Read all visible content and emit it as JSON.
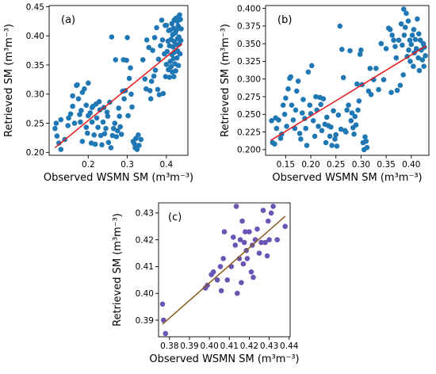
{
  "chart_data": [
    {
      "type": "scatter",
      "panel_label": "(a)",
      "xlabel": "Observed WSMN SM (m³m⁻³)",
      "ylabel": "Retrieved SM (m³m⁻³)",
      "xlim": [
        0.1,
        0.455
      ],
      "ylim": [
        0.195,
        0.452
      ],
      "xticks": [
        0.2,
        0.3,
        0.4
      ],
      "yticks": [
        0.2,
        0.25,
        0.3,
        0.35,
        0.4,
        0.45
      ],
      "xtick_labels": [
        "0.2",
        "0.3",
        "0.4"
      ],
      "ytick_labels": [
        "0.20",
        "0.25",
        "0.30",
        "0.35",
        "0.40",
        "0.45"
      ],
      "point_color": "#1f77b4",
      "fit_color": "#e31a1c",
      "fit_line": {
        "x": [
          0.115,
          0.44
        ],
        "y": [
          0.208,
          0.386
        ]
      },
      "points": [
        [
          0.115,
          0.241
        ],
        [
          0.118,
          0.25
        ],
        [
          0.12,
          0.228
        ],
        [
          0.125,
          0.216
        ],
        [
          0.13,
          0.205
        ],
        [
          0.13,
          0.256
        ],
        [
          0.14,
          0.222
        ],
        [
          0.148,
          0.246
        ],
        [
          0.15,
          0.259
        ],
        [
          0.155,
          0.266
        ],
        [
          0.16,
          0.279
        ],
        [
          0.16,
          0.297
        ],
        [
          0.165,
          0.25
        ],
        [
          0.17,
          0.315
        ],
        [
          0.172,
          0.316
        ],
        [
          0.175,
          0.292
        ],
        [
          0.178,
          0.265
        ],
        [
          0.18,
          0.252
        ],
        [
          0.182,
          0.272
        ],
        [
          0.185,
          0.303
        ],
        [
          0.185,
          0.219
        ],
        [
          0.19,
          0.309
        ],
        [
          0.195,
          0.281
        ],
        [
          0.195,
          0.243
        ],
        [
          0.198,
          0.233
        ],
        [
          0.2,
          0.319
        ],
        [
          0.2,
          0.263
        ],
        [
          0.205,
          0.268
        ],
        [
          0.208,
          0.216
        ],
        [
          0.21,
          0.277
        ],
        [
          0.21,
          0.252
        ],
        [
          0.212,
          0.279
        ],
        [
          0.215,
          0.23
        ],
        [
          0.218,
          0.214
        ],
        [
          0.22,
          0.283
        ],
        [
          0.222,
          0.259
        ],
        [
          0.225,
          0.243
        ],
        [
          0.228,
          0.287
        ],
        [
          0.23,
          0.273
        ],
        [
          0.232,
          0.229
        ],
        [
          0.235,
          0.213
        ],
        [
          0.238,
          0.252
        ],
        [
          0.24,
          0.277
        ],
        [
          0.242,
          0.232
        ],
        [
          0.245,
          0.241
        ],
        [
          0.248,
          0.269
        ],
        [
          0.25,
          0.262
        ],
        [
          0.252,
          0.217
        ],
        [
          0.255,
          0.286
        ],
        [
          0.258,
          0.208
        ],
        [
          0.26,
          0.398
        ],
        [
          0.262,
          0.229
        ],
        [
          0.265,
          0.241
        ],
        [
          0.268,
          0.25
        ],
        [
          0.27,
          0.359
        ],
        [
          0.272,
          0.227
        ],
        [
          0.275,
          0.237
        ],
        [
          0.278,
          0.276
        ],
        [
          0.28,
          0.262
        ],
        [
          0.282,
          0.244
        ],
        [
          0.285,
          0.231
        ],
        [
          0.288,
          0.305
        ],
        [
          0.29,
          0.359
        ],
        [
          0.292,
          0.292
        ],
        [
          0.295,
          0.306
        ],
        [
          0.298,
          0.358
        ],
        [
          0.3,
          0.397
        ],
        [
          0.302,
          0.263
        ],
        [
          0.305,
          0.327
        ],
        [
          0.308,
          0.345
        ],
        [
          0.31,
          0.3
        ],
        [
          0.312,
          0.278
        ],
        [
          0.315,
          0.219
        ],
        [
          0.318,
          0.215
        ],
        [
          0.32,
          0.208
        ],
        [
          0.322,
          0.224
        ],
        [
          0.325,
          0.205
        ],
        [
          0.328,
          0.23
        ],
        [
          0.33,
          0.212
        ],
        [
          0.335,
          0.222
        ],
        [
          0.34,
          0.359
        ],
        [
          0.345,
          0.326
        ],
        [
          0.348,
          0.309
        ],
        [
          0.35,
          0.393
        ],
        [
          0.355,
          0.38
        ],
        [
          0.358,
          0.306
        ],
        [
          0.36,
          0.292
        ],
        [
          0.362,
          0.322
        ],
        [
          0.365,
          0.375
        ],
        [
          0.368,
          0.331
        ],
        [
          0.37,
          0.397
        ],
        [
          0.372,
          0.341
        ],
        [
          0.375,
          0.414
        ],
        [
          0.378,
          0.308
        ],
        [
          0.38,
          0.36
        ],
        [
          0.382,
          0.299
        ],
        [
          0.385,
          0.383
        ],
        [
          0.388,
          0.427
        ],
        [
          0.39,
          0.393
        ],
        [
          0.392,
          0.301
        ],
        [
          0.395,
          0.369
        ],
        [
          0.397,
          0.418
        ],
        [
          0.398,
          0.33
        ],
        [
          0.4,
          0.351
        ],
        [
          0.4,
          0.418
        ],
        [
          0.402,
          0.373
        ],
        [
          0.404,
          0.391
        ],
        [
          0.405,
          0.342
        ],
        [
          0.406,
          0.409
        ],
        [
          0.408,
          0.329
        ],
        [
          0.408,
          0.383
        ],
        [
          0.41,
          0.41
        ],
        [
          0.41,
          0.356
        ],
        [
          0.412,
          0.347
        ],
        [
          0.412,
          0.394
        ],
        [
          0.414,
          0.368
        ],
        [
          0.414,
          0.421
        ],
        [
          0.415,
          0.338
        ],
        [
          0.416,
          0.402
        ],
        [
          0.417,
          0.381
        ],
        [
          0.418,
          0.361
        ],
        [
          0.418,
          0.413
        ],
        [
          0.419,
          0.33
        ],
        [
          0.42,
          0.39
        ],
        [
          0.42,
          0.427
        ],
        [
          0.421,
          0.372
        ],
        [
          0.422,
          0.352
        ],
        [
          0.423,
          0.405
        ],
        [
          0.424,
          0.34
        ],
        [
          0.424,
          0.43
        ],
        [
          0.425,
          0.385
        ],
        [
          0.426,
          0.41
        ],
        [
          0.427,
          0.362
        ],
        [
          0.428,
          0.395
        ],
        [
          0.428,
          0.425
        ],
        [
          0.429,
          0.374
        ],
        [
          0.43,
          0.417
        ],
        [
          0.43,
          0.432
        ],
        [
          0.431,
          0.349
        ],
        [
          0.432,
          0.398
        ],
        [
          0.433,
          0.386
        ],
        [
          0.434,
          0.436
        ],
        [
          0.435,
          0.369
        ],
        [
          0.436,
          0.428
        ],
        [
          0.437,
          0.392
        ],
        [
          0.438,
          0.412
        ]
      ]
    },
    {
      "type": "scatter",
      "panel_label": "(b)",
      "xlabel": "Observed WSMN SM (m³m⁻³)",
      "ylabel": "Retrieved SM (m³m⁻³)",
      "xlim": [
        0.11,
        0.435
      ],
      "ylim": [
        0.192,
        0.404
      ],
      "xticks": [
        0.15,
        0.2,
        0.25,
        0.3,
        0.35,
        0.4
      ],
      "yticks": [
        0.2,
        0.225,
        0.25,
        0.275,
        0.3,
        0.325,
        0.35,
        0.375,
        0.4
      ],
      "xtick_labels": [
        "0.15",
        "0.20",
        "0.25",
        "0.30",
        "0.35",
        "0.40"
      ],
      "ytick_labels": [
        "0.200",
        "0.225",
        "0.250",
        "0.275",
        "0.300",
        "0.325",
        "0.350",
        "0.375",
        "0.400"
      ],
      "point_color": "#1f77b4",
      "fit_color": "#e31a1c",
      "fit_line": {
        "x": [
          0.12,
          0.43
        ],
        "y": [
          0.213,
          0.347
        ]
      },
      "points": [
        [
          0.122,
          0.241
        ],
        [
          0.124,
          0.21
        ],
        [
          0.128,
          0.208
        ],
        [
          0.13,
          0.245
        ],
        [
          0.132,
          0.23
        ],
        [
          0.136,
          0.242
        ],
        [
          0.14,
          0.216
        ],
        [
          0.142,
          0.222
        ],
        [
          0.145,
          0.263
        ],
        [
          0.148,
          0.25
        ],
        [
          0.15,
          0.273
        ],
        [
          0.152,
          0.233
        ],
        [
          0.155,
          0.286
        ],
        [
          0.158,
          0.301
        ],
        [
          0.16,
          0.303
        ],
        [
          0.162,
          0.263
        ],
        [
          0.165,
          0.242
        ],
        [
          0.168,
          0.23
        ],
        [
          0.17,
          0.256
        ],
        [
          0.172,
          0.283
        ],
        [
          0.175,
          0.297
        ],
        [
          0.178,
          0.223
        ],
        [
          0.18,
          0.215
        ],
        [
          0.183,
          0.252
        ],
        [
          0.185,
          0.271
        ],
        [
          0.188,
          0.244
        ],
        [
          0.19,
          0.23
        ],
        [
          0.192,
          0.206
        ],
        [
          0.195,
          0.31
        ],
        [
          0.198,
          0.263
        ],
        [
          0.2,
          0.251
        ],
        [
          0.202,
          0.319
        ],
        [
          0.205,
          0.241
        ],
        [
          0.208,
          0.219
        ],
        [
          0.21,
          0.275
        ],
        [
          0.212,
          0.256
        ],
        [
          0.215,
          0.233
        ],
        [
          0.218,
          0.274
        ],
        [
          0.22,
          0.264
        ],
        [
          0.222,
          0.227
        ],
        [
          0.225,
          0.272
        ],
        [
          0.228,
          0.236
        ],
        [
          0.23,
          0.21
        ],
        [
          0.232,
          0.246
        ],
        [
          0.235,
          0.234
        ],
        [
          0.238,
          0.219
        ],
        [
          0.24,
          0.232
        ],
        [
          0.242,
          0.206
        ],
        [
          0.245,
          0.255
        ],
        [
          0.248,
          0.215
        ],
        [
          0.25,
          0.221
        ],
        [
          0.252,
          0.205
        ],
        [
          0.255,
          0.249
        ],
        [
          0.258,
          0.375
        ],
        [
          0.26,
          0.229
        ],
        [
          0.262,
          0.342
        ],
        [
          0.265,
          0.302
        ],
        [
          0.268,
          0.227
        ],
        [
          0.27,
          0.225
        ],
        [
          0.272,
          0.256
        ],
        [
          0.275,
          0.263
        ],
        [
          0.278,
          0.34
        ],
        [
          0.28,
          0.241
        ],
        [
          0.282,
          0.252
        ],
        [
          0.284,
          0.231
        ],
        [
          0.286,
          0.222
        ],
        [
          0.288,
          0.247
        ],
        [
          0.29,
          0.235
        ],
        [
          0.292,
          0.293
        ],
        [
          0.294,
          0.256
        ],
        [
          0.296,
          0.269
        ],
        [
          0.298,
          0.335
        ],
        [
          0.3,
          0.341
        ],
        [
          0.302,
          0.292
        ],
        [
          0.304,
          0.21
        ],
        [
          0.306,
          0.2
        ],
        [
          0.308,
          0.218
        ],
        [
          0.31,
          0.212
        ],
        [
          0.312,
          0.203
        ],
        [
          0.315,
          0.283
        ],
        [
          0.318,
          0.315
        ],
        [
          0.32,
          0.278
        ],
        [
          0.325,
          0.299
        ],
        [
          0.33,
          0.315
        ],
        [
          0.335,
          0.285
        ],
        [
          0.34,
          0.35
        ],
        [
          0.345,
          0.299
        ],
        [
          0.35,
          0.343
        ],
        [
          0.355,
          0.372
        ],
        [
          0.358,
          0.37
        ],
        [
          0.36,
          0.281
        ],
        [
          0.362,
          0.362
        ],
        [
          0.365,
          0.355
        ],
        [
          0.368,
          0.346
        ],
        [
          0.37,
          0.33
        ],
        [
          0.372,
          0.284
        ],
        [
          0.375,
          0.355
        ],
        [
          0.378,
          0.291
        ],
        [
          0.38,
          0.378
        ],
        [
          0.382,
          0.348
        ],
        [
          0.384,
          0.306
        ],
        [
          0.385,
          0.399
        ],
        [
          0.386,
          0.362
        ],
        [
          0.388,
          0.373
        ],
        [
          0.39,
          0.393
        ],
        [
          0.392,
          0.332
        ],
        [
          0.394,
          0.382
        ],
        [
          0.395,
          0.341
        ],
        [
          0.397,
          0.355
        ],
        [
          0.398,
          0.325
        ],
        [
          0.4,
          0.349
        ],
        [
          0.402,
          0.362
        ],
        [
          0.404,
          0.318
        ],
        [
          0.405,
          0.37
        ],
        [
          0.406,
          0.337
        ],
        [
          0.408,
          0.356
        ],
        [
          0.41,
          0.343
        ],
        [
          0.412,
          0.385
        ],
        [
          0.414,
          0.33
        ],
        [
          0.415,
          0.364
        ],
        [
          0.416,
          0.312
        ],
        [
          0.418,
          0.355
        ],
        [
          0.42,
          0.341
        ],
        [
          0.422,
          0.327
        ],
        [
          0.424,
          0.35
        ],
        [
          0.425,
          0.318
        ],
        [
          0.426,
          0.345
        ],
        [
          0.428,
          0.333
        ]
      ]
    },
    {
      "type": "scatter",
      "panel_label": "(c)",
      "xlabel": "Observed WSMN SM (m³m⁻³)",
      "ylabel": "Retrieved SM (m³m⁻³)",
      "xlim": [
        0.3745,
        0.4405
      ],
      "ylim": [
        0.3838,
        0.4338
      ],
      "xticks": [
        0.38,
        0.39,
        0.4,
        0.41,
        0.42,
        0.43,
        0.44
      ],
      "yticks": [
        0.39,
        0.4,
        0.41,
        0.42,
        0.43
      ],
      "xtick_labels": [
        "0.38",
        "0.39",
        "0.40",
        "0.41",
        "0.42",
        "0.43",
        "0.44"
      ],
      "ytick_labels": [
        "0.39",
        "0.40",
        "0.41",
        "0.42",
        "0.43"
      ],
      "point_color": "#6a55b5",
      "fit_color": "#8b5a1f",
      "fit_line": {
        "x": [
          0.3765,
          0.438
        ],
        "y": [
          0.3885,
          0.4288
        ]
      },
      "points": [
        [
          0.3765,
          0.396
        ],
        [
          0.377,
          0.39
        ],
        [
          0.378,
          0.385
        ],
        [
          0.398,
          0.402
        ],
        [
          0.399,
          0.403
        ],
        [
          0.401,
          0.407
        ],
        [
          0.402,
          0.408
        ],
        [
          0.404,
          0.405
        ],
        [
          0.4055,
          0.41
        ],
        [
          0.406,
          0.401
        ],
        [
          0.407,
          0.413
        ],
        [
          0.4075,
          0.423
        ],
        [
          0.409,
          0.405
        ],
        [
          0.411,
          0.41
        ],
        [
          0.412,
          0.421
        ],
        [
          0.413,
          0.418
        ],
        [
          0.4135,
          0.4325
        ],
        [
          0.414,
          0.4
        ],
        [
          0.415,
          0.413
        ],
        [
          0.4155,
          0.42
        ],
        [
          0.416,
          0.404
        ],
        [
          0.4165,
          0.427
        ],
        [
          0.417,
          0.411
        ],
        [
          0.4175,
          0.419
        ],
        [
          0.418,
          0.423
        ],
        [
          0.4185,
          0.416
        ],
        [
          0.419,
          0.413
        ],
        [
          0.42,
          0.423
        ],
        [
          0.421,
          0.408
        ],
        [
          0.4215,
          0.418
        ],
        [
          0.422,
          0.406
        ],
        [
          0.423,
          0.42
        ],
        [
          0.424,
          0.424
        ],
        [
          0.425,
          0.415
        ],
        [
          0.426,
          0.419
        ],
        [
          0.427,
          0.431
        ],
        [
          0.428,
          0.419
        ],
        [
          0.429,
          0.414
        ],
        [
          0.4295,
          0.427
        ],
        [
          0.43,
          0.42
        ],
        [
          0.431,
          0.43
        ],
        [
          0.432,
          0.4325
        ],
        [
          0.434,
          0.42
        ],
        [
          0.438,
          0.425
        ]
      ]
    }
  ]
}
